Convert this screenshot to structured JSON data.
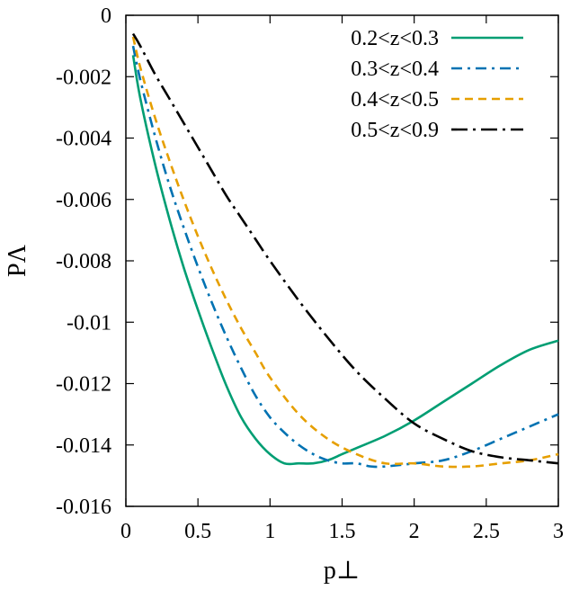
{
  "chart_data": {
    "type": "line",
    "title": "",
    "xlabel": "p⊥",
    "ylabel": "PΛ",
    "xlim": [
      0,
      3
    ],
    "ylim": [
      -0.016,
      0
    ],
    "x_ticks": [
      0,
      0.5,
      1,
      1.5,
      2,
      2.5,
      3
    ],
    "x_tick_labels": [
      "0",
      "0.5",
      "1",
      "1.5",
      "2",
      "2.5",
      "3"
    ],
    "y_ticks": [
      0,
      -0.002,
      -0.004,
      -0.006,
      -0.008,
      -0.01,
      -0.012,
      -0.014,
      -0.016
    ],
    "y_tick_labels": [
      "0",
      "-0.002",
      "-0.004",
      "-0.006",
      "-0.008",
      "-0.01",
      "-0.012",
      "-0.014",
      "-0.016"
    ],
    "grid": false,
    "legend_position": "top-right",
    "series": [
      {
        "name": "0.2<z<0.3",
        "color": "#009e73",
        "dash": "solid",
        "x": [
          0.05,
          0.1,
          0.2,
          0.3,
          0.4,
          0.5,
          0.6,
          0.7,
          0.8,
          0.9,
          1.0,
          1.1,
          1.2,
          1.3,
          1.4,
          1.5,
          1.6,
          1.8,
          2.0,
          2.2,
          2.4,
          2.6,
          2.8,
          3.0
        ],
        "y": [
          -0.0013,
          -0.0027,
          -0.0048,
          -0.0066,
          -0.0082,
          -0.0096,
          -0.0109,
          -0.0121,
          -0.0131,
          -0.0138,
          -0.0143,
          -0.0146,
          -0.0146,
          -0.0146,
          -0.0145,
          -0.0143,
          -0.0141,
          -0.0137,
          -0.0132,
          -0.0126,
          -0.012,
          -0.0114,
          -0.0109,
          -0.0106
        ]
      },
      {
        "name": "0.3<z<0.4",
        "color": "#0072b2",
        "dash": "dashdot",
        "x": [
          0.05,
          0.1,
          0.2,
          0.3,
          0.4,
          0.5,
          0.6,
          0.7,
          0.8,
          0.9,
          1.0,
          1.1,
          1.2,
          1.3,
          1.4,
          1.5,
          1.6,
          1.7,
          1.8,
          2.0,
          2.2,
          2.4,
          2.6,
          2.8,
          3.0
        ],
        "y": [
          -0.001,
          -0.0021,
          -0.0039,
          -0.0055,
          -0.0069,
          -0.0082,
          -0.0094,
          -0.0105,
          -0.0115,
          -0.0124,
          -0.0131,
          -0.0136,
          -0.014,
          -0.0143,
          -0.0145,
          -0.0146,
          -0.0146,
          -0.0147,
          -0.0147,
          -0.0146,
          -0.0145,
          -0.0142,
          -0.0138,
          -0.0134,
          -0.013
        ]
      },
      {
        "name": "0.4<z<0.5",
        "color": "#e69f00",
        "dash": "dashed",
        "x": [
          0.05,
          0.1,
          0.2,
          0.3,
          0.4,
          0.5,
          0.6,
          0.7,
          0.8,
          0.9,
          1.0,
          1.2,
          1.4,
          1.6,
          1.8,
          2.0,
          2.2,
          2.4,
          2.6,
          2.8,
          3.0
        ],
        "y": [
          -0.0007,
          -0.0017,
          -0.0033,
          -0.0047,
          -0.006,
          -0.0072,
          -0.0083,
          -0.0093,
          -0.0102,
          -0.011,
          -0.0118,
          -0.013,
          -0.0138,
          -0.0143,
          -0.0146,
          -0.0146,
          -0.0147,
          -0.0147,
          -0.0146,
          -0.0145,
          -0.0143
        ]
      },
      {
        "name": "0.5<z<0.9",
        "color": "#000000",
        "dash": "dashdotlong",
        "x": [
          0.05,
          0.1,
          0.2,
          0.3,
          0.4,
          0.5,
          0.6,
          0.7,
          0.8,
          0.9,
          1.0,
          1.2,
          1.4,
          1.6,
          1.8,
          2.0,
          2.2,
          2.4,
          2.6,
          2.8,
          3.0
        ],
        "y": [
          -0.0006,
          -0.001,
          -0.0019,
          -0.0027,
          -0.0035,
          -0.0043,
          -0.0051,
          -0.0059,
          -0.0066,
          -0.0073,
          -0.008,
          -0.0093,
          -0.0105,
          -0.0116,
          -0.0125,
          -0.0133,
          -0.0138,
          -0.0142,
          -0.0144,
          -0.0145,
          -0.0146
        ]
      }
    ]
  }
}
